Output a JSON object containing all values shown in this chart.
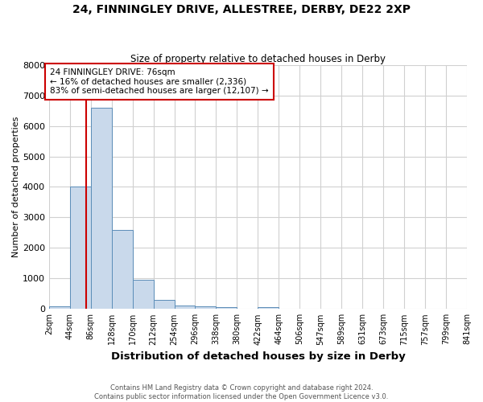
{
  "title1": "24, FINNINGLEY DRIVE, ALLESTREE, DERBY, DE22 2XP",
  "title2": "Size of property relative to detached houses in Derby",
  "xlabel": "Distribution of detached houses by size in Derby",
  "ylabel": "Number of detached properties",
  "bin_labels": [
    "2sqm",
    "44sqm",
    "86sqm",
    "128sqm",
    "170sqm",
    "212sqm",
    "254sqm",
    "296sqm",
    "338sqm",
    "380sqm",
    "422sqm",
    "464sqm",
    "506sqm",
    "547sqm",
    "589sqm",
    "631sqm",
    "673sqm",
    "715sqm",
    "757sqm",
    "799sqm",
    "841sqm"
  ],
  "bar_heights": [
    75,
    4000,
    6600,
    2600,
    950,
    310,
    120,
    80,
    50,
    20,
    60,
    0,
    0,
    0,
    0,
    0,
    0,
    0,
    0,
    0
  ],
  "bar_color": "#c9d9eb",
  "bar_edge_color": "#5b8db8",
  "property_size_bin": 2,
  "red_line_color": "#cc0000",
  "annotation_box_color": "#cc0000",
  "annotation_line1": "24 FINNINGLEY DRIVE: 76sqm",
  "annotation_line2": "← 16% of detached houses are smaller (2,336)",
  "annotation_line3": "83% of semi-detached houses are larger (12,107) →",
  "ylim": [
    0,
    8000
  ],
  "yticks": [
    0,
    1000,
    2000,
    3000,
    4000,
    5000,
    6000,
    7000,
    8000
  ],
  "footer1": "Contains HM Land Registry data © Crown copyright and database right 2024.",
  "footer2": "Contains public sector information licensed under the Open Government Licence v3.0.",
  "bg_color": "#ffffff",
  "grid_color": "#d0d0d0",
  "n_bins": 20
}
